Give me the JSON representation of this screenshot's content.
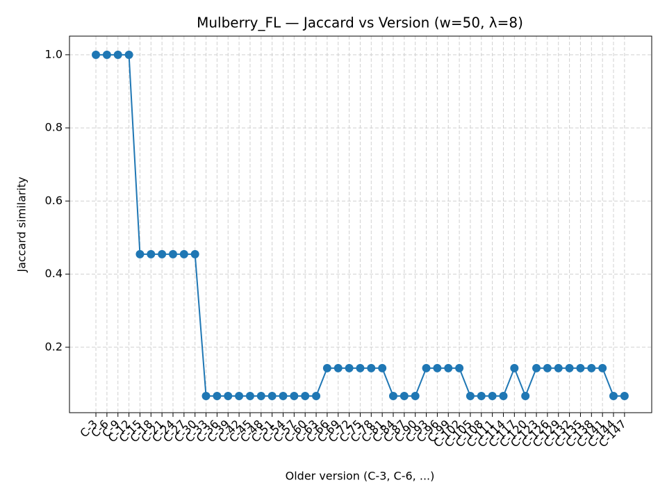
{
  "chart_data": {
    "type": "line",
    "title": "Mulberry_FL — Jaccard vs Version (w=50, λ=8)",
    "x_label": "Older version (C-3, C-6, ...)",
    "y_label": "Jaccard similarity",
    "categories": [
      "C-3",
      "C-6",
      "C-9",
      "C-12",
      "C-15",
      "C-18",
      "C-21",
      "C-24",
      "C-27",
      "C-30",
      "C-33",
      "C-36",
      "C-39",
      "C-42",
      "C-45",
      "C-48",
      "C-51",
      "C-54",
      "C-57",
      "C-60",
      "C-63",
      "C-66",
      "C-69",
      "C-72",
      "C-75",
      "C-78",
      "C-81",
      "C-84",
      "C-87",
      "C-90",
      "C-93",
      "C-96",
      "C-99",
      "C-102",
      "C-105",
      "C-108",
      "C-111",
      "C-114",
      "C-117",
      "C-120",
      "C-123",
      "C-126",
      "C-129",
      "C-132",
      "C-135",
      "C-138",
      "C-141",
      "C-144",
      "C-147"
    ],
    "series": [
      {
        "name": "Jaccard",
        "color": "#1f77b4",
        "values": [
          1,
          1,
          1,
          1,
          0.4545,
          0.4545,
          0.4545,
          0.4545,
          0.4545,
          0.4545,
          0.0667,
          0.0667,
          0.0667,
          0.0667,
          0.0667,
          0.0667,
          0.0667,
          0.0667,
          0.0667,
          0.0667,
          0.0667,
          0.1429,
          0.1429,
          0.1429,
          0.1429,
          0.1429,
          0.1429,
          0.0667,
          0.0667,
          0.0667,
          0.1429,
          0.1429,
          0.1429,
          0.1429,
          0.0667,
          0.0667,
          0.0667,
          0.0667,
          0.1429,
          0.0667,
          0.1429,
          0.1429,
          0.1429,
          0.1429,
          0.1429,
          0.1429,
          0.1429,
          0.0667,
          0.0667
        ]
      }
    ],
    "ylim": [
      0.021,
      1.051
    ],
    "yticks": [
      0.2,
      0.4,
      0.6,
      0.8,
      {
        "value": 1,
        "label": "1.0"
      }
    ],
    "grid": true
  }
}
